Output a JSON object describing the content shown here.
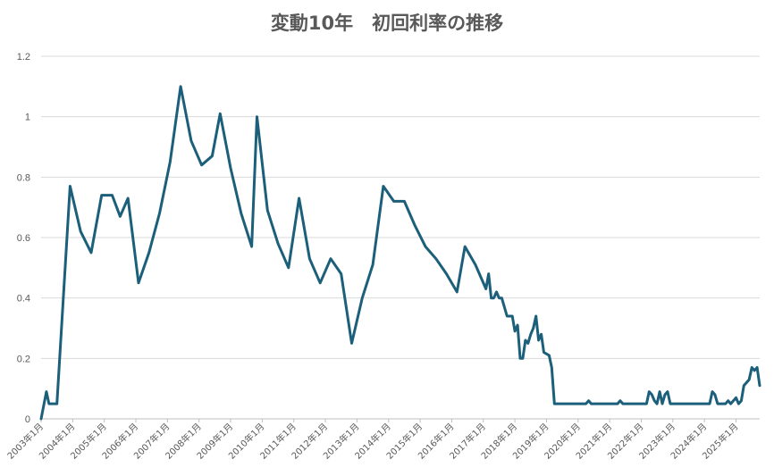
{
  "chart_data": {
    "type": "line",
    "title": "変動10年　初回利率の推移",
    "xlabel": "",
    "ylabel": "",
    "ylim": [
      0,
      1.2
    ],
    "yticks": [
      "0",
      "0.2",
      "0.4",
      "0.6",
      "0.8",
      "1",
      "1.2"
    ],
    "xlim": [
      "2003-01",
      "2025-10"
    ],
    "xticks": [
      {
        "date": "2003-01",
        "label": "2003年1月"
      },
      {
        "date": "2004-01",
        "label": "2004年1月"
      },
      {
        "date": "2005-01",
        "label": "2005年1月"
      },
      {
        "date": "2006-01",
        "label": "2006年1月"
      },
      {
        "date": "2007-01",
        "label": "2007年1月"
      },
      {
        "date": "2008-01",
        "label": "2008年1月"
      },
      {
        "date": "2009-01",
        "label": "2009年1月"
      },
      {
        "date": "2010-01",
        "label": "2010年1月"
      },
      {
        "date": "2011-01",
        "label": "2011年1月"
      },
      {
        "date": "2012-01",
        "label": "2012年1月"
      },
      {
        "date": "2013-01",
        "label": "2013年1月"
      },
      {
        "date": "2014-01",
        "label": "2014年1月"
      },
      {
        "date": "2015-01",
        "label": "2015年1月"
      },
      {
        "date": "2016-01",
        "label": "2016年1月"
      },
      {
        "date": "2017-01",
        "label": "2017年1月"
      },
      {
        "date": "2018-01",
        "label": "2018年1月"
      },
      {
        "date": "2019-01",
        "label": "2019年1月"
      },
      {
        "date": "2020-01",
        "label": "2020年1月"
      },
      {
        "date": "2021-01",
        "label": "2021年1月"
      },
      {
        "date": "2022-01",
        "label": "2022年1月"
      },
      {
        "date": "2023-01",
        "label": "2023年1月"
      },
      {
        "date": "2024-01",
        "label": "2024年1月"
      },
      {
        "date": "2025-01",
        "label": "2025年1月"
      }
    ],
    "grid": true,
    "legend": "none",
    "series": [
      {
        "color": "#1b5f7a",
        "points": [
          [
            "2003-01",
            0.0
          ],
          [
            "2003-03",
            0.09
          ],
          [
            "2003-04",
            0.05
          ],
          [
            "2003-07",
            0.05
          ],
          [
            "2003-12",
            0.77
          ],
          [
            "2004-04",
            0.62
          ],
          [
            "2004-08",
            0.55
          ],
          [
            "2004-12",
            0.74
          ],
          [
            "2005-04",
            0.74
          ],
          [
            "2005-07",
            0.67
          ],
          [
            "2005-10",
            0.73
          ],
          [
            "2006-02",
            0.45
          ],
          [
            "2006-06",
            0.55
          ],
          [
            "2006-10",
            0.68
          ],
          [
            "2007-02",
            0.85
          ],
          [
            "2007-06",
            1.1
          ],
          [
            "2007-10",
            0.92
          ],
          [
            "2008-02",
            0.84
          ],
          [
            "2008-06",
            0.87
          ],
          [
            "2008-09",
            1.01
          ],
          [
            "2009-01",
            0.83
          ],
          [
            "2009-05",
            0.68
          ],
          [
            "2009-09",
            0.57
          ],
          [
            "2009-11",
            1.0
          ],
          [
            "2010-03",
            0.69
          ],
          [
            "2010-07",
            0.58
          ],
          [
            "2010-11",
            0.5
          ],
          [
            "2011-03",
            0.73
          ],
          [
            "2011-07",
            0.53
          ],
          [
            "2011-11",
            0.45
          ],
          [
            "2012-03",
            0.53
          ],
          [
            "2012-07",
            0.48
          ],
          [
            "2012-11",
            0.25
          ],
          [
            "2013-03",
            0.4
          ],
          [
            "2013-07",
            0.51
          ],
          [
            "2013-11",
            0.77
          ],
          [
            "2014-03",
            0.72
          ],
          [
            "2014-07",
            0.72
          ],
          [
            "2014-11",
            0.64
          ],
          [
            "2015-03",
            0.57
          ],
          [
            "2015-07",
            0.53
          ],
          [
            "2015-11",
            0.48
          ],
          [
            "2016-03",
            0.42
          ],
          [
            "2016-06",
            0.57
          ],
          [
            "2016-10",
            0.51
          ],
          [
            "2017-02",
            0.43
          ],
          [
            "2017-03",
            0.48
          ],
          [
            "2017-04",
            0.4
          ],
          [
            "2017-05",
            0.4
          ],
          [
            "2017-06",
            0.42
          ],
          [
            "2017-07",
            0.4
          ],
          [
            "2017-08",
            0.4
          ],
          [
            "2017-10",
            0.34
          ],
          [
            "2017-12",
            0.34
          ],
          [
            "2018-01",
            0.29
          ],
          [
            "2018-02",
            0.31
          ],
          [
            "2018-03",
            0.2
          ],
          [
            "2018-04",
            0.2
          ],
          [
            "2018-05",
            0.26
          ],
          [
            "2018-06",
            0.25
          ],
          [
            "2018-07",
            0.28
          ],
          [
            "2018-08",
            0.3
          ],
          [
            "2018-09",
            0.34
          ],
          [
            "2018-10",
            0.26
          ],
          [
            "2018-11",
            0.28
          ],
          [
            "2018-12",
            0.22
          ],
          [
            "2019-02",
            0.21
          ],
          [
            "2019-03",
            0.17
          ],
          [
            "2019-04",
            0.05
          ],
          [
            "2020-04",
            0.05
          ],
          [
            "2020-05",
            0.06
          ],
          [
            "2020-06",
            0.05
          ],
          [
            "2021-04",
            0.05
          ],
          [
            "2021-05",
            0.06
          ],
          [
            "2021-06",
            0.05
          ],
          [
            "2022-03",
            0.05
          ],
          [
            "2022-04",
            0.09
          ],
          [
            "2022-05",
            0.08
          ],
          [
            "2022-06",
            0.06
          ],
          [
            "2022-07",
            0.05
          ],
          [
            "2022-08",
            0.09
          ],
          [
            "2022-09",
            0.05
          ],
          [
            "2022-10",
            0.08
          ],
          [
            "2022-11",
            0.09
          ],
          [
            "2022-12",
            0.05
          ],
          [
            "2024-03",
            0.05
          ],
          [
            "2024-04",
            0.09
          ],
          [
            "2024-05",
            0.08
          ],
          [
            "2024-06",
            0.05
          ],
          [
            "2024-09",
            0.05
          ],
          [
            "2024-10",
            0.06
          ],
          [
            "2024-11",
            0.05
          ],
          [
            "2025-01",
            0.07
          ],
          [
            "2025-02",
            0.05
          ],
          [
            "2025-03",
            0.06
          ],
          [
            "2025-04",
            0.11
          ],
          [
            "2025-05",
            0.12
          ],
          [
            "2025-06",
            0.13
          ],
          [
            "2025-07",
            0.17
          ],
          [
            "2025-08",
            0.16
          ],
          [
            "2025-09",
            0.17
          ],
          [
            "2025-10",
            0.11
          ]
        ]
      }
    ]
  }
}
